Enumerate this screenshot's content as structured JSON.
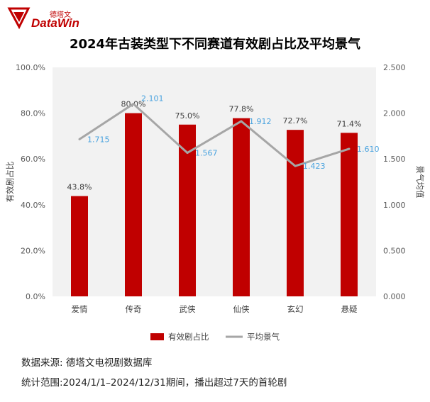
{
  "brand": {
    "name_cn": "德塔文",
    "name_en": "DataWin"
  },
  "title": "2024年古装类型下不同赛道有效剧占比及平均景气",
  "chart_data": {
    "type": "bar",
    "categories": [
      "爱情",
      "传奇",
      "武侠",
      "仙侠",
      "玄幻",
      "悬疑"
    ],
    "series": [
      {
        "name": "有效剧占比",
        "type": "bar",
        "axis": "left",
        "values": [
          43.8,
          80.0,
          75.0,
          77.8,
          72.7,
          71.4
        ],
        "labels": [
          "43.8%",
          "80.0%",
          "75.0%",
          "77.8%",
          "72.7%",
          "71.4%"
        ],
        "color": "#c00000"
      },
      {
        "name": "平均景气",
        "type": "line",
        "axis": "right",
        "values": [
          1.715,
          2.101,
          1.567,
          1.912,
          1.423,
          1.61
        ],
        "labels": [
          "1.715",
          "2.101",
          "1.567",
          "1.912",
          "1.423",
          "1.610"
        ],
        "color": "#a6a6a6",
        "label_color": "#4aa3df"
      }
    ],
    "y_left": {
      "label": "有效剧占比",
      "min": 0,
      "max": 100,
      "ticks": [
        "0.0%",
        "20.0%",
        "40.0%",
        "60.0%",
        "80.0%",
        "100.0%"
      ]
    },
    "y_right": {
      "label": "景气均值",
      "min": 0,
      "max": 2.5,
      "ticks": [
        "0.000",
        "0.500",
        "1.000",
        "1.500",
        "2.000",
        "2.500"
      ]
    },
    "plot_background": "#f2f2f2",
    "grid": false,
    "legend_position": "bottom"
  },
  "footnotes": {
    "source": "数据来源: 德塔文电视剧数据库",
    "scope": "统计范围:2024/1/1–2024/12/31期间，播出超过7天的首轮剧"
  }
}
